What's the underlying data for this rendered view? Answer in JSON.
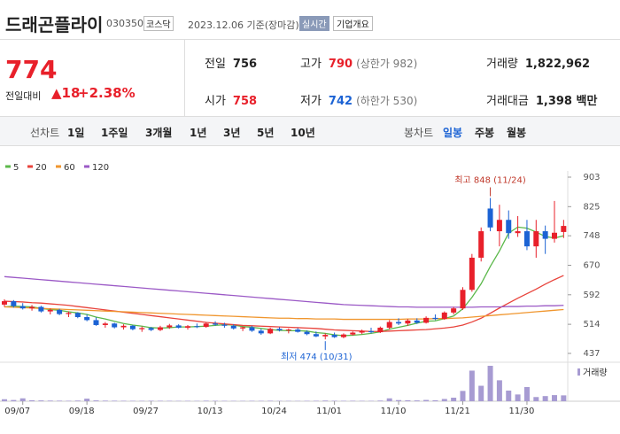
{
  "header": {
    "name": "드래곤플라이",
    "code": "030350",
    "market": "코스닥",
    "date": "2023.12.06",
    "basis": "기준(장마감)",
    "realtime": "실시간",
    "company_info": "기업개요"
  },
  "quote": {
    "price": "774",
    "change_label": "전일대비",
    "change": "18",
    "change_pct": "+2.38%"
  },
  "stats": [
    {
      "label": "전일",
      "value": "756"
    },
    {
      "label": "고가",
      "value": "790",
      "note": "(상한가 982)"
    },
    {
      "label": "거래량",
      "value": "1,822,962"
    },
    {
      "label": "시가",
      "value": "758"
    },
    {
      "label": "저가",
      "value": "742",
      "note": "(하한가 530)"
    },
    {
      "label": "거래대금",
      "value": "1,398 백만"
    }
  ],
  "tabs": {
    "line": "선차트",
    "periods": [
      "1일",
      "1주일",
      "3개월",
      "1년",
      "3년",
      "5년",
      "10년"
    ],
    "candle": "봉차트",
    "candle_periods": [
      "일봉",
      "주봉",
      "월봉"
    ]
  },
  "chart_data": {
    "type": "candlestick",
    "categories": [
      null,
      null,
      "09/07",
      null,
      null,
      null,
      null,
      null,
      null,
      "09/18",
      null,
      null,
      null,
      null,
      null,
      null,
      "09/27",
      null,
      null,
      null,
      null,
      null,
      null,
      "10/13",
      null,
      null,
      null,
      null,
      null,
      null,
      "10/24",
      null,
      null,
      null,
      null,
      null,
      "11/01",
      null,
      null,
      null,
      null,
      null,
      null,
      "11/10",
      null,
      null,
      null,
      null,
      null,
      null,
      "11/21",
      null,
      null,
      null,
      null,
      null,
      null,
      "11/30",
      null,
      null,
      null,
      null
    ],
    "open": [
      566,
      575,
      562,
      556,
      560,
      548,
      552,
      541,
      544,
      533,
      525,
      512,
      516,
      506,
      510,
      501,
      504,
      499,
      506,
      511,
      505,
      509,
      507,
      516,
      513,
      510,
      503,
      506,
      497,
      490,
      502,
      498,
      500,
      494,
      488,
      482,
      486,
      480,
      487,
      492,
      496,
      493,
      505,
      520,
      516,
      524,
      518,
      531,
      528,
      545,
      556,
      605,
      690,
      820,
      760,
      790,
      755,
      760,
      720,
      760,
      740,
      758
    ],
    "high": [
      580,
      578,
      570,
      565,
      563,
      556,
      555,
      548,
      546,
      540,
      532,
      520,
      518,
      514,
      512,
      508,
      507,
      510,
      515,
      514,
      512,
      516,
      520,
      522,
      518,
      514,
      508,
      510,
      502,
      505,
      506,
      503,
      504,
      498,
      495,
      490,
      492,
      490,
      495,
      500,
      505,
      508,
      525,
      530,
      528,
      530,
      535,
      540,
      548,
      560,
      612,
      700,
      770,
      848,
      830,
      815,
      800,
      790,
      790,
      775,
      840,
      790
    ],
    "low": [
      560,
      558,
      553,
      550,
      545,
      540,
      538,
      533,
      530,
      522,
      510,
      505,
      503,
      500,
      498,
      494,
      496,
      496,
      502,
      503,
      500,
      504,
      505,
      510,
      505,
      500,
      496,
      494,
      486,
      488,
      495,
      490,
      492,
      485,
      480,
      474,
      478,
      477,
      484,
      488,
      490,
      491,
      500,
      512,
      510,
      515,
      516,
      525,
      526,
      540,
      552,
      600,
      680,
      760,
      720,
      740,
      745,
      710,
      690,
      700,
      730,
      742
    ],
    "close": [
      575,
      562,
      556,
      560,
      548,
      552,
      541,
      544,
      533,
      525,
      512,
      516,
      506,
      510,
      501,
      504,
      499,
      506,
      511,
      505,
      509,
      507,
      516,
      513,
      510,
      503,
      506,
      497,
      490,
      502,
      498,
      500,
      494,
      488,
      482,
      486,
      480,
      487,
      492,
      496,
      493,
      505,
      520,
      516,
      524,
      518,
      531,
      528,
      545,
      556,
      605,
      690,
      760,
      770,
      790,
      755,
      760,
      720,
      760,
      740,
      756,
      774
    ],
    "up_color": "#e8202a",
    "down_color": "#1c63d4",
    "ylim": [
      437,
      903
    ],
    "yticks": [
      437,
      514,
      592,
      670,
      748,
      825,
      903
    ],
    "moving_averages": [
      {
        "name": "5",
        "color": "#5bb84a",
        "values": [
          560,
          562,
          561,
          560,
          556,
          553,
          551,
          547,
          544,
          540,
          533,
          528,
          522,
          516,
          512,
          509,
          505,
          504,
          505,
          507,
          507,
          508,
          509,
          511,
          513,
          512,
          508,
          506,
          503,
          500,
          498,
          497,
          497,
          496,
          492,
          490,
          486,
          484,
          485,
          487,
          490,
          494,
          501,
          506,
          511,
          517,
          522,
          523,
          529,
          536,
          555,
          585,
          621,
          667,
          708,
          755,
          771,
          768,
          758,
          746,
          742,
          748
        ]
      },
      {
        "name": "20",
        "color": "#e8433b",
        "values": [
          575,
          574,
          573,
          571,
          570,
          568,
          566,
          564,
          561,
          558,
          555,
          552,
          549,
          546,
          543,
          540,
          537,
          534,
          531,
          528,
          525,
          522,
          519,
          517,
          515,
          513,
          511,
          510,
          509,
          508,
          507,
          506,
          505,
          504,
          503,
          501,
          499,
          498,
          497,
          496,
          495,
          495,
          496,
          497,
          498,
          499,
          500,
          502,
          504,
          507,
          512,
          520,
          530,
          543,
          557,
          570,
          583,
          595,
          607,
          620,
          632,
          643
        ]
      },
      {
        "name": "60",
        "color": "#f0962e",
        "values": [
          560,
          559,
          558,
          557,
          556,
          555,
          554,
          553,
          552,
          551,
          550,
          549,
          548,
          547,
          546,
          545,
          544,
          543,
          542,
          541,
          540,
          539,
          538,
          537,
          536,
          535,
          534,
          533,
          532,
          531,
          530,
          530,
          529,
          529,
          528,
          528,
          528,
          527,
          527,
          527,
          527,
          527,
          527,
          527,
          528,
          528,
          528,
          529,
          529,
          530,
          531,
          533,
          535,
          537,
          539,
          541,
          543,
          545,
          547,
          549,
          551,
          553
        ]
      },
      {
        "name": "120",
        "color": "#9b59c6",
        "values": [
          640,
          638,
          636,
          634,
          632,
          630,
          628,
          626,
          624,
          622,
          620,
          618,
          616,
          614,
          612,
          610,
          608,
          606,
          604,
          602,
          600,
          598,
          596,
          594,
          592,
          590,
          588,
          586,
          584,
          582,
          580,
          578,
          576,
          574,
          572,
          570,
          568,
          566,
          565,
          564,
          563,
          562,
          561,
          560,
          560,
          559,
          559,
          559,
          559,
          559,
          559,
          559,
          560,
          560,
          560,
          561,
          561,
          562,
          562,
          563,
          563,
          564
        ]
      }
    ],
    "volume": {
      "name": "거래량",
      "color": "#a79bd2",
      "values": [
        620000,
        380000,
        900000,
        300000,
        250000,
        200000,
        180000,
        150000,
        210000,
        800000,
        260000,
        190000,
        170000,
        150000,
        140000,
        130000,
        160000,
        150000,
        140000,
        120000,
        130000,
        110000,
        170000,
        150000,
        130000,
        120000,
        110000,
        140000,
        130000,
        160000,
        120000,
        110000,
        100000,
        130000,
        150000,
        210000,
        160000,
        140000,
        150000,
        130000,
        120000,
        200000,
        900000,
        350000,
        300000,
        250000,
        400000,
        300000,
        700000,
        1100000,
        3200000,
        9500000,
        4800000,
        11000000,
        6500000,
        3300000,
        2100000,
        4400000,
        1300000,
        1600000,
        1900000,
        1822962
      ]
    },
    "annotations": [
      {
        "text": "최고 848 (11/24)",
        "value": 848
      },
      {
        "text": "최저 474 (10/31)",
        "value": 474
      }
    ]
  }
}
